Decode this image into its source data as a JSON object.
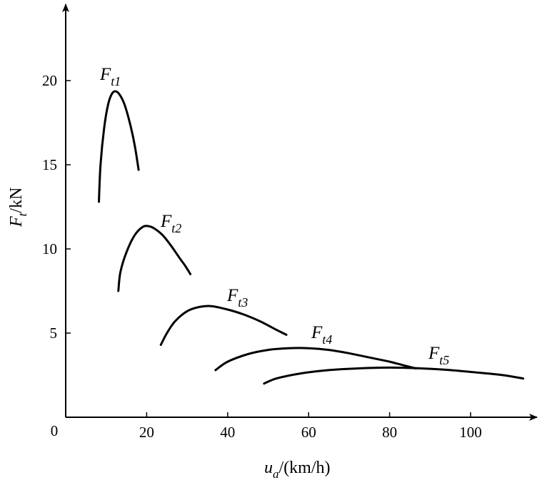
{
  "chart_data": {
    "type": "line",
    "xlabel": {
      "var": "u",
      "sub": "a",
      "rest": "/(km/h)"
    },
    "ylabel": {
      "var": "F",
      "sub": "t",
      "rest": "/kN"
    },
    "xlim": [
      0,
      115
    ],
    "ylim": [
      0,
      24
    ],
    "origin_label": "0",
    "xticks": [
      20,
      40,
      60,
      80,
      100
    ],
    "yticks": [
      5,
      10,
      15,
      20
    ],
    "grid": false,
    "series": [
      {
        "name": "F_t1",
        "label_main": "F",
        "label_sub": "t1",
        "points": [
          [
            8.2,
            12.8
          ],
          [
            8.6,
            15.0
          ],
          [
            9.5,
            17.2
          ],
          [
            10.5,
            18.6
          ],
          [
            11.5,
            19.25
          ],
          [
            12.5,
            19.35
          ],
          [
            13.5,
            19.1
          ],
          [
            14.5,
            18.6
          ],
          [
            15.5,
            17.8
          ],
          [
            16.5,
            16.8
          ],
          [
            17.3,
            15.8
          ],
          [
            18.0,
            14.7
          ]
        ]
      },
      {
        "name": "F_t2",
        "label_main": "F",
        "label_sub": "t2",
        "points": [
          [
            13.0,
            7.5
          ],
          [
            13.5,
            8.6
          ],
          [
            15.0,
            9.8
          ],
          [
            17.0,
            10.8
          ],
          [
            19.0,
            11.3
          ],
          [
            20.5,
            11.35
          ],
          [
            22.0,
            11.2
          ],
          [
            24.0,
            10.8
          ],
          [
            26.0,
            10.2
          ],
          [
            28.0,
            9.5
          ],
          [
            29.5,
            9.0
          ],
          [
            30.8,
            8.5
          ]
        ]
      },
      {
        "name": "F_t3",
        "label_main": "F",
        "label_sub": "t3",
        "points": [
          [
            23.5,
            4.3
          ],
          [
            25.0,
            5.0
          ],
          [
            27.0,
            5.7
          ],
          [
            30.0,
            6.3
          ],
          [
            33.0,
            6.55
          ],
          [
            36.0,
            6.6
          ],
          [
            40.0,
            6.4
          ],
          [
            44.0,
            6.1
          ],
          [
            48.0,
            5.7
          ],
          [
            52.0,
            5.2
          ],
          [
            54.5,
            4.9
          ]
        ]
      },
      {
        "name": "F_t4",
        "label_main": "F",
        "label_sub": "t4",
        "points": [
          [
            37.0,
            2.8
          ],
          [
            40.0,
            3.3
          ],
          [
            45.0,
            3.75
          ],
          [
            50.0,
            4.0
          ],
          [
            55.0,
            4.1
          ],
          [
            60.0,
            4.1
          ],
          [
            65.0,
            4.0
          ],
          [
            70.0,
            3.8
          ],
          [
            75.0,
            3.55
          ],
          [
            80.0,
            3.3
          ],
          [
            84.0,
            3.05
          ],
          [
            86.5,
            2.9
          ]
        ]
      },
      {
        "name": "F_t5",
        "label_main": "F",
        "label_sub": "t5",
        "points": [
          [
            49.0,
            2.0
          ],
          [
            52.0,
            2.3
          ],
          [
            58.0,
            2.6
          ],
          [
            65.0,
            2.8
          ],
          [
            72.0,
            2.9
          ],
          [
            80.0,
            2.95
          ],
          [
            88.0,
            2.9
          ],
          [
            95.0,
            2.8
          ],
          [
            102.0,
            2.65
          ],
          [
            108.0,
            2.5
          ],
          [
            113.0,
            2.3
          ]
        ]
      }
    ]
  }
}
